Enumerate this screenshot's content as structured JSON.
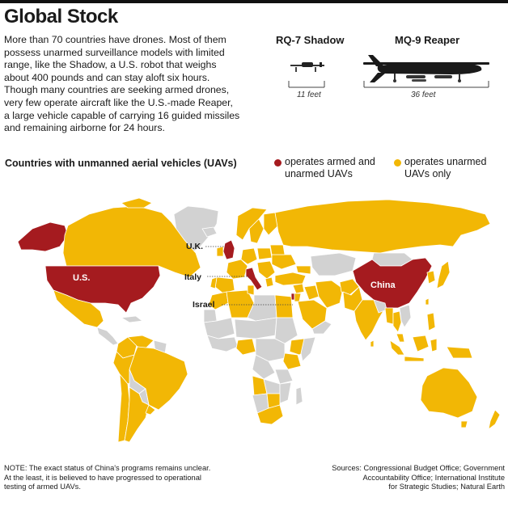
{
  "title": "Global Stock",
  "intro": [
    "More than 70 countries have drones. Most of them",
    "possess unarmed surveillance models with limited",
    "range, like the Shadow, a U.S. robot that weighs",
    "about 400 pounds and can stay aloft six hours.",
    "Though many countries are seeking armed drones,",
    "very few operate aircraft like the U.S.-made Reaper,",
    "a large vehicle capable of carrying 16 guided missiles",
    "and remaining airborne for 24 hours."
  ],
  "drones": {
    "shadow": {
      "name": "RQ-7 Shadow",
      "length": "11 feet"
    },
    "reaper": {
      "name": "MQ-9 Reaper",
      "length": "36 feet"
    }
  },
  "legend": {
    "title": "Countries with unmanned aerial vehicles (UAVs)",
    "armed": {
      "line1": "operates armed and",
      "line2": "unarmed UAVs",
      "color": "#a51b1f"
    },
    "unarmed": {
      "line1": "operates unarmed",
      "line2": "UAVs only",
      "color": "#f2b705"
    }
  },
  "map": {
    "colors": {
      "armed": "#a51b1f",
      "unarmed": "#f2b705",
      "none": "#d2d2d2",
      "border": "#ffffff"
    },
    "labels": {
      "us": "U.S.",
      "china": "China",
      "uk": "U.K.",
      "italy": "Italy",
      "israel": "Israel"
    }
  },
  "note": [
    "NOTE: The exact status of China's programs remains unclear.",
    "At the least, it is believed to have progressed to operational",
    "testing of armed UAVs."
  ],
  "sources": [
    "Sources: Congressional Budget Office; Government",
    "Accountability Office; International Institute",
    "for Strategic Studies; Natural Earth"
  ]
}
